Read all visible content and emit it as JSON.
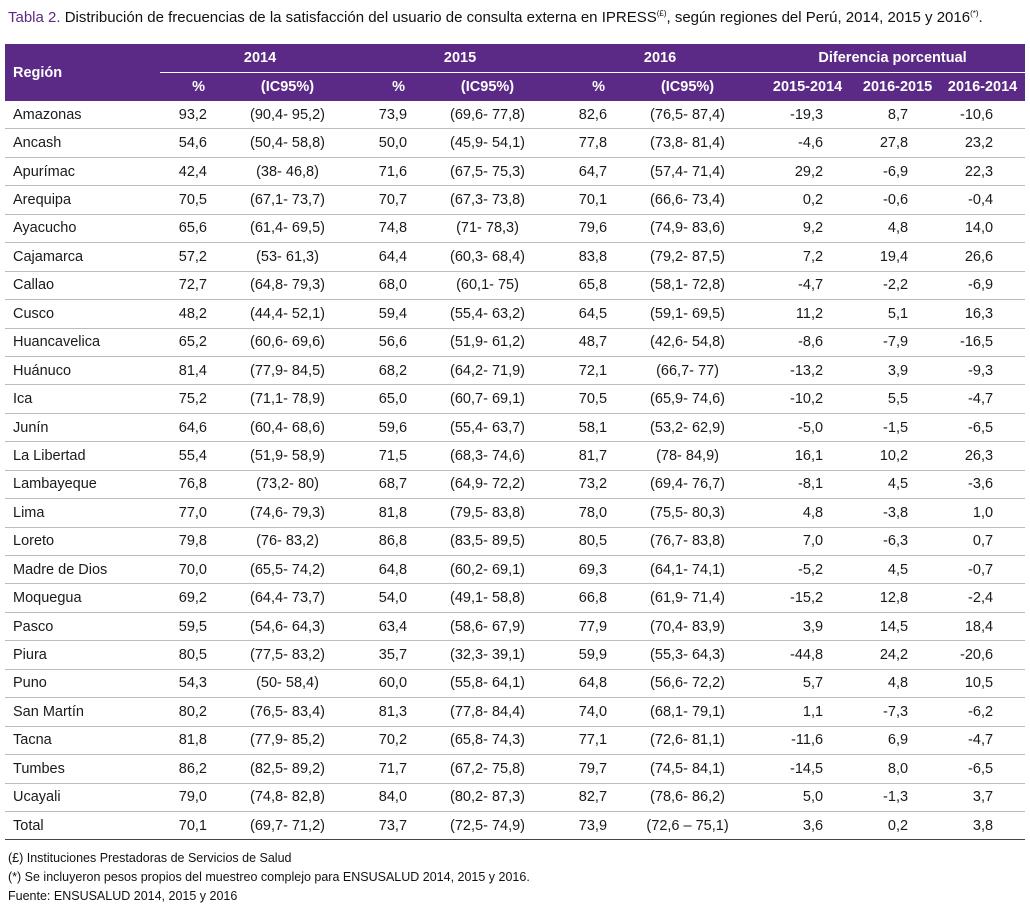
{
  "caption": {
    "label": "Tabla 2.",
    "text_a": " Distribución de frecuencias de la satisfacción del usuario de consulta externa en IPRESS",
    "sup1": "(£)",
    "text_b": ", según regiones del Perú, 2014, 2015 y 2016",
    "sup2": "(*)",
    "text_c": "."
  },
  "table": {
    "region_header": "Región",
    "year_headers": [
      "2014",
      "2015",
      "2016"
    ],
    "diff_header": "Diferencia porcentual",
    "pct_label": "%",
    "ic_label": "(IC95%)",
    "diff_subheaders": [
      "2015-2014",
      "2016-2015",
      "2016-2014"
    ],
    "rows": [
      [
        "Amazonas",
        "93,2",
        "(90,4- 95,2)",
        "73,9",
        "(69,6- 77,8)",
        "82,6",
        "(76,5- 87,4)",
        "-19,3",
        "8,7",
        "-10,6"
      ],
      [
        "Ancash",
        "54,6",
        "(50,4- 58,8)",
        "50,0",
        "(45,9- 54,1)",
        "77,8",
        "(73,8- 81,4)",
        "-4,6",
        "27,8",
        "23,2"
      ],
      [
        "Apurímac",
        "42,4",
        "(38- 46,8)",
        "71,6",
        "(67,5- 75,3)",
        "64,7",
        "(57,4- 71,4)",
        "29,2",
        "-6,9",
        "22,3"
      ],
      [
        "Arequipa",
        "70,5",
        "(67,1- 73,7)",
        "70,7",
        "(67,3- 73,8)",
        "70,1",
        "(66,6- 73,4)",
        "0,2",
        "-0,6",
        "-0,4"
      ],
      [
        "Ayacucho",
        "65,6",
        "(61,4- 69,5)",
        "74,8",
        "(71- 78,3)",
        "79,6",
        "(74,9- 83,6)",
        "9,2",
        "4,8",
        "14,0"
      ],
      [
        "Cajamarca",
        "57,2",
        "(53- 61,3)",
        "64,4",
        "(60,3- 68,4)",
        "83,8",
        "(79,2- 87,5)",
        "7,2",
        "19,4",
        "26,6"
      ],
      [
        "Callao",
        "72,7",
        "(64,8- 79,3)",
        "68,0",
        "(60,1- 75)",
        "65,8",
        "(58,1- 72,8)",
        "-4,7",
        "-2,2",
        "-6,9"
      ],
      [
        "Cusco",
        "48,2",
        "(44,4- 52,1)",
        "59,4",
        "(55,4- 63,2)",
        "64,5",
        "(59,1- 69,5)",
        "11,2",
        "5,1",
        "16,3"
      ],
      [
        "Huancavelica",
        "65,2",
        "(60,6- 69,6)",
        "56,6",
        "(51,9- 61,2)",
        "48,7",
        "(42,6- 54,8)",
        "-8,6",
        "-7,9",
        "-16,5"
      ],
      [
        "Huánuco",
        "81,4",
        "(77,9- 84,5)",
        "68,2",
        "(64,2- 71,9)",
        "72,1",
        "(66,7- 77)",
        "-13,2",
        "3,9",
        "-9,3"
      ],
      [
        "Ica",
        "75,2",
        "(71,1- 78,9)",
        "65,0",
        "(60,7- 69,1)",
        "70,5",
        "(65,9- 74,6)",
        "-10,2",
        "5,5",
        "-4,7"
      ],
      [
        "Junín",
        "64,6",
        "(60,4- 68,6)",
        "59,6",
        "(55,4- 63,7)",
        "58,1",
        "(53,2- 62,9)",
        "-5,0",
        "-1,5",
        "-6,5"
      ],
      [
        "La Libertad",
        "55,4",
        "(51,9- 58,9)",
        "71,5",
        "(68,3- 74,6)",
        "81,7",
        "(78- 84,9)",
        "16,1",
        "10,2",
        "26,3"
      ],
      [
        "Lambayeque",
        "76,8",
        "(73,2- 80)",
        "68,7",
        "(64,9- 72,2)",
        "73,2",
        "(69,4- 76,7)",
        "-8,1",
        "4,5",
        "-3,6"
      ],
      [
        "Lima",
        "77,0",
        "(74,6- 79,3)",
        "81,8",
        "(79,5- 83,8)",
        "78,0",
        "(75,5- 80,3)",
        "4,8",
        "-3,8",
        "1,0"
      ],
      [
        "Loreto",
        "79,8",
        "(76- 83,2)",
        "86,8",
        "(83,5- 89,5)",
        "80,5",
        "(76,7- 83,8)",
        "7,0",
        "-6,3",
        "0,7"
      ],
      [
        "Madre de Dios",
        "70,0",
        "(65,5- 74,2)",
        "64,8",
        "(60,2- 69,1)",
        "69,3",
        "(64,1- 74,1)",
        "-5,2",
        "4,5",
        "-0,7"
      ],
      [
        "Moquegua",
        "69,2",
        "(64,4- 73,7)",
        "54,0",
        "(49,1- 58,8)",
        "66,8",
        "(61,9- 71,4)",
        "-15,2",
        "12,8",
        "-2,4"
      ],
      [
        "Pasco",
        "59,5",
        "(54,6- 64,3)",
        "63,4",
        "(58,6- 67,9)",
        "77,9",
        "(70,4- 83,9)",
        "3,9",
        "14,5",
        "18,4"
      ],
      [
        "Piura",
        "80,5",
        "(77,5- 83,2)",
        "35,7",
        "(32,3- 39,1)",
        "59,9",
        "(55,3- 64,3)",
        "-44,8",
        "24,2",
        "-20,6"
      ],
      [
        "Puno",
        "54,3",
        "(50- 58,4)",
        "60,0",
        "(55,8- 64,1)",
        "64,8",
        "(56,6- 72,2)",
        "5,7",
        "4,8",
        "10,5"
      ],
      [
        "San Martín",
        "80,2",
        "(76,5- 83,4)",
        "81,3",
        "(77,8- 84,4)",
        "74,0",
        "(68,1- 79,1)",
        "1,1",
        "-7,3",
        "-6,2"
      ],
      [
        "Tacna",
        "81,8",
        "(77,9- 85,2)",
        "70,2",
        "(65,8- 74,3)",
        "77,1",
        "(72,6- 81,1)",
        "-11,6",
        "6,9",
        "-4,7"
      ],
      [
        "Tumbes",
        "86,2",
        "(82,5- 89,2)",
        "71,7",
        "(67,2- 75,8)",
        "79,7",
        "(74,5- 84,1)",
        "-14,5",
        "8,0",
        "-6,5"
      ],
      [
        "Ucayali",
        "79,0",
        "(74,8- 82,8)",
        "84,0",
        "(80,2- 87,3)",
        "82,7",
        "(78,6- 86,2)",
        "5,0",
        "-1,3",
        "3,7"
      ],
      [
        "Total",
        "70,1",
        "(69,7- 71,2)",
        "73,7",
        "(72,5- 74,9)",
        "73,9",
        "(72,6 – 75,1)",
        "3,6",
        "0,2",
        "3,8"
      ]
    ]
  },
  "notes": [
    "(£) Instituciones Prestadoras de Servicios de Salud",
    "(*) Se incluyeron pesos propios del muestreo complejo para ENSUSALUD 2014, 2015 y 2016.",
    "Fuente: ENSUSALUD 2014, 2015 y 2016"
  ],
  "colors": {
    "header_bg": "#5b2a86",
    "header_text": "#ffffff",
    "caption_label": "#5b2a86",
    "row_rule": "#bcbcbc"
  }
}
